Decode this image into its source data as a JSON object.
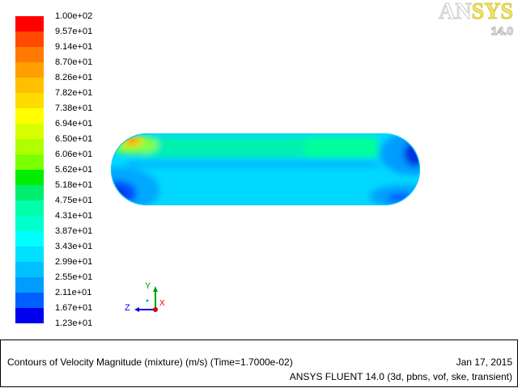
{
  "chart_data": {
    "type": "heatmap",
    "title": "Contours of Velocity Magnitude (mixture)  (m/s)  (Time=1.7000e-02)",
    "colorbar": {
      "labels": [
        "1.00e+02",
        "9.57e+01",
        "9.14e+01",
        "8.70e+01",
        "8.26e+01",
        "7.82e+01",
        "7.38e+01",
        "6.94e+01",
        "6.50e+01",
        "6.06e+01",
        "5.62e+01",
        "5.18e+01",
        "4.75e+01",
        "4.31e+01",
        "3.87e+01",
        "3.43e+01",
        "2.99e+01",
        "2.55e+01",
        "2.11e+01",
        "1.67e+01",
        "1.23e+01"
      ],
      "range": [
        12.3,
        100
      ],
      "colors": [
        "#ff0000",
        "#ff4a00",
        "#ff7a00",
        "#ffa000",
        "#ffc000",
        "#ffdc00",
        "#ffff00",
        "#d8ff00",
        "#b0ff00",
        "#7cff00",
        "#00ee00",
        "#00ee70",
        "#00ffa8",
        "#00ffcc",
        "#00ffff",
        "#00e0ff",
        "#00c0ff",
        "#009cff",
        "#0060ff",
        "#0000ee"
      ]
    },
    "axes_triad": {
      "x": "X",
      "y": "Y",
      "z": "Z"
    }
  },
  "logo": {
    "brand": "ANSYS",
    "version": "14.0"
  },
  "footer": {
    "title": "Contours of Velocity Magnitude (mixture)  (m/s)  (Time=1.7000e-02)",
    "date": "Jan 17, 2015",
    "solver": "ANSYS FLUENT 14.0 (3d, pbns, vof, ske, transient)"
  }
}
